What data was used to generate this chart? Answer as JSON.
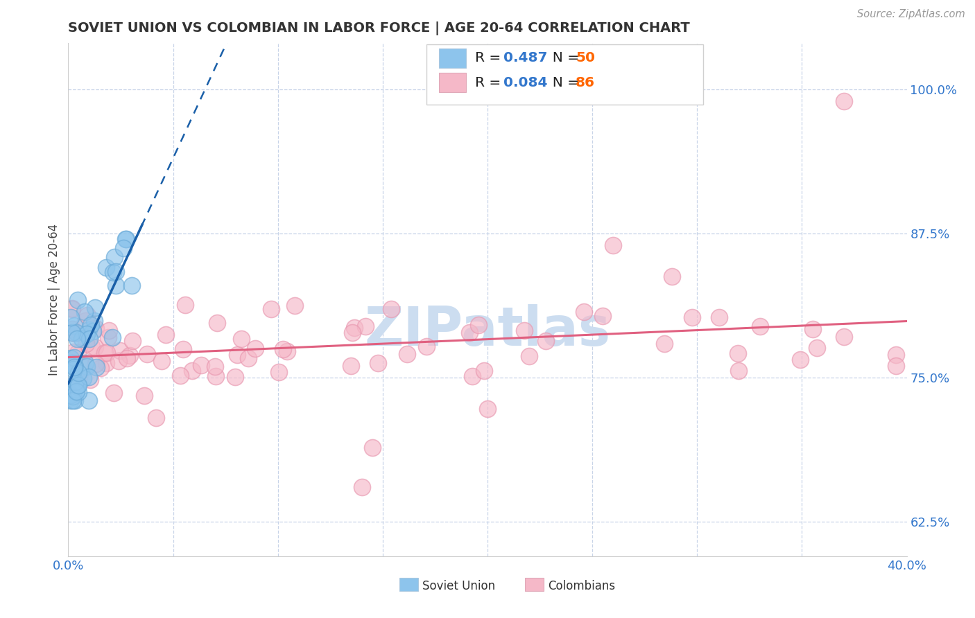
{
  "title": "SOVIET UNION VS COLOMBIAN IN LABOR FORCE | AGE 20-64 CORRELATION CHART",
  "source_text": "Source: ZipAtlas.com",
  "ylabel": "In Labor Force | Age 20-64",
  "xmin": 0.0,
  "xmax": 0.4,
  "ymin": 0.595,
  "ymax": 1.04,
  "yticks": [
    0.625,
    0.75,
    0.875,
    1.0
  ],
  "ytick_labels": [
    "62.5%",
    "75.0%",
    "87.5%",
    "100.0%"
  ],
  "xticks": [
    0.0,
    0.05,
    0.1,
    0.15,
    0.2,
    0.25,
    0.3,
    0.35,
    0.4
  ],
  "soviet_R": 0.487,
  "soviet_N": 50,
  "colombian_R": 0.084,
  "colombian_N": 86,
  "soviet_color": "#8dc4ec",
  "soviet_edge_color": "#6aaad8",
  "colombian_color": "#f5b8c8",
  "colombian_edge_color": "#e898b0",
  "soviet_line_color": "#1a5fa8",
  "colombian_line_color": "#e06080",
  "legend_R_color": "#3377cc",
  "legend_N_color": "#ff6600",
  "legend_text_color": "#333333",
  "background_color": "#ffffff",
  "grid_color": "#c8d4e8",
  "title_color": "#333333",
  "watermark_color": "#ccddf0",
  "watermark_text": "ZIPatlas"
}
